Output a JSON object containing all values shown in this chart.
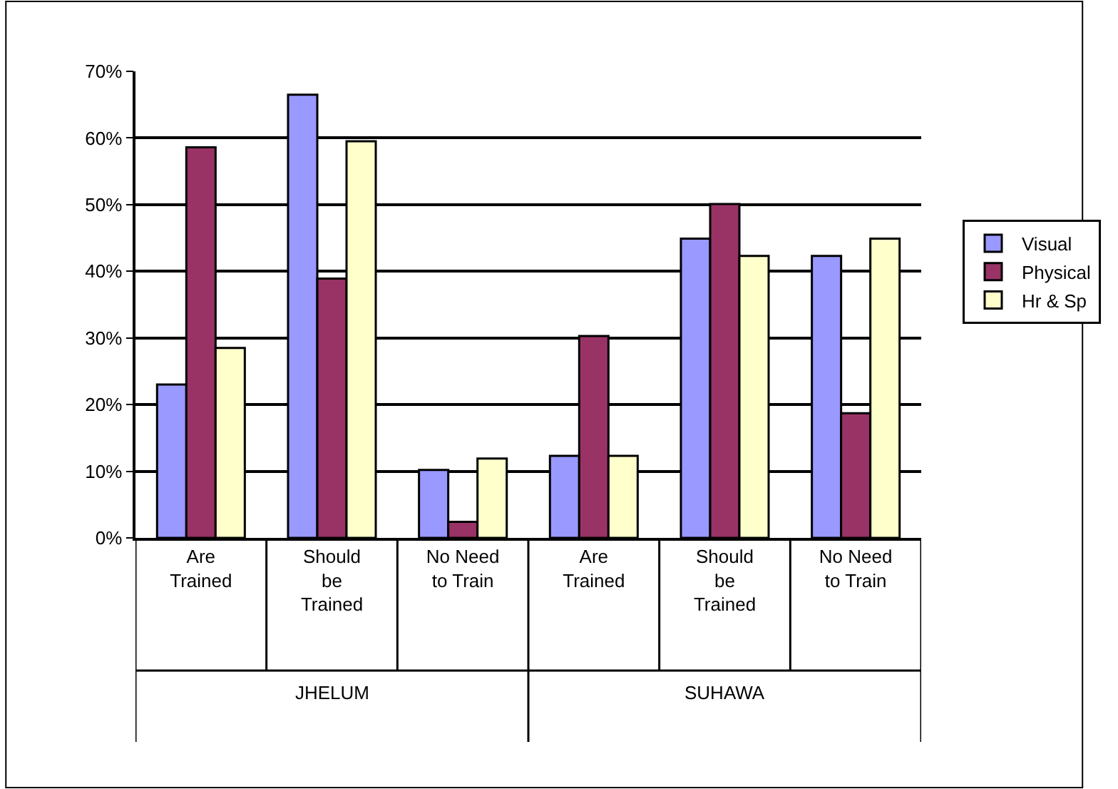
{
  "chart_data": {
    "type": "bar",
    "categories": [
      "Are Trained",
      "Should be Trained",
      "No Need to Train",
      "Are Trained",
      "Should be Trained",
      "No Need to Train"
    ],
    "series": [
      {
        "name": "Visual",
        "color": "#9999ff",
        "values": [
          23,
          66.5,
          10.2,
          12.3,
          44.9,
          42.3
        ]
      },
      {
        "name": "Physical",
        "color": "#993366",
        "values": [
          58.6,
          38.9,
          2.4,
          30.3,
          50.1,
          18.7
        ]
      },
      {
        "name": "Hr & Sp",
        "color": "#ffffcc",
        "values": [
          28.5,
          59.5,
          11.9,
          12.3,
          42.3,
          44.9
        ]
      }
    ],
    "annotations": [
      "JHELUM",
      "SUHAWA"
    ],
    "ylim": [
      0,
      70
    ],
    "yticks": [
      {
        "value": 0,
        "label": "0%"
      },
      {
        "value": 10,
        "label": "10%"
      },
      {
        "value": 20,
        "label": "20%"
      },
      {
        "value": 30,
        "label": "30%"
      },
      {
        "value": 40,
        "label": "40%"
      },
      {
        "value": 50,
        "label": "50%"
      },
      {
        "value": 60,
        "label": "60%"
      },
      {
        "value": 70,
        "label": "70%"
      }
    ],
    "grid": "y",
    "legend": "right"
  }
}
